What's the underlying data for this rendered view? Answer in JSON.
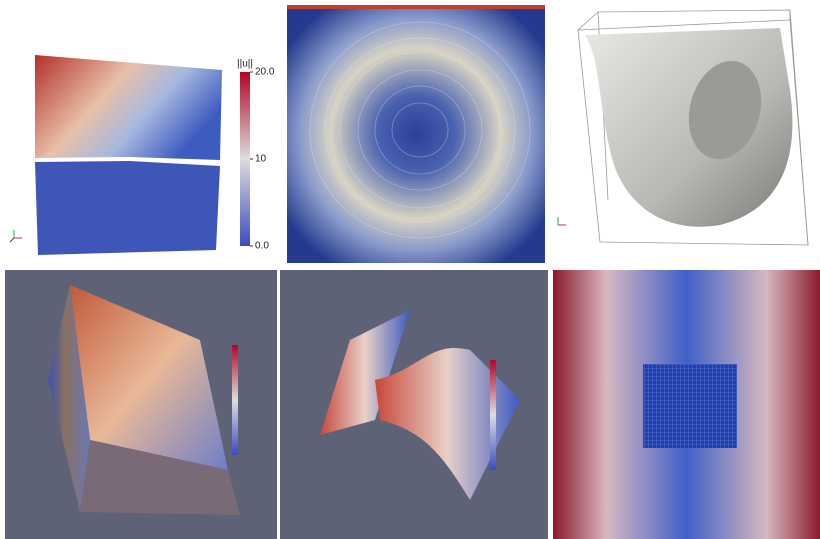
{
  "panels": [
    {
      "colorbar": {
        "title": "||u||",
        "range": [
          0,
          20
        ],
        "ticks": [
          {
            "value": 20,
            "label": "20.0"
          },
          10,
          {
            "value": 0,
            "label": "0.0"
          }
        ]
      }
    }
  ]
}
